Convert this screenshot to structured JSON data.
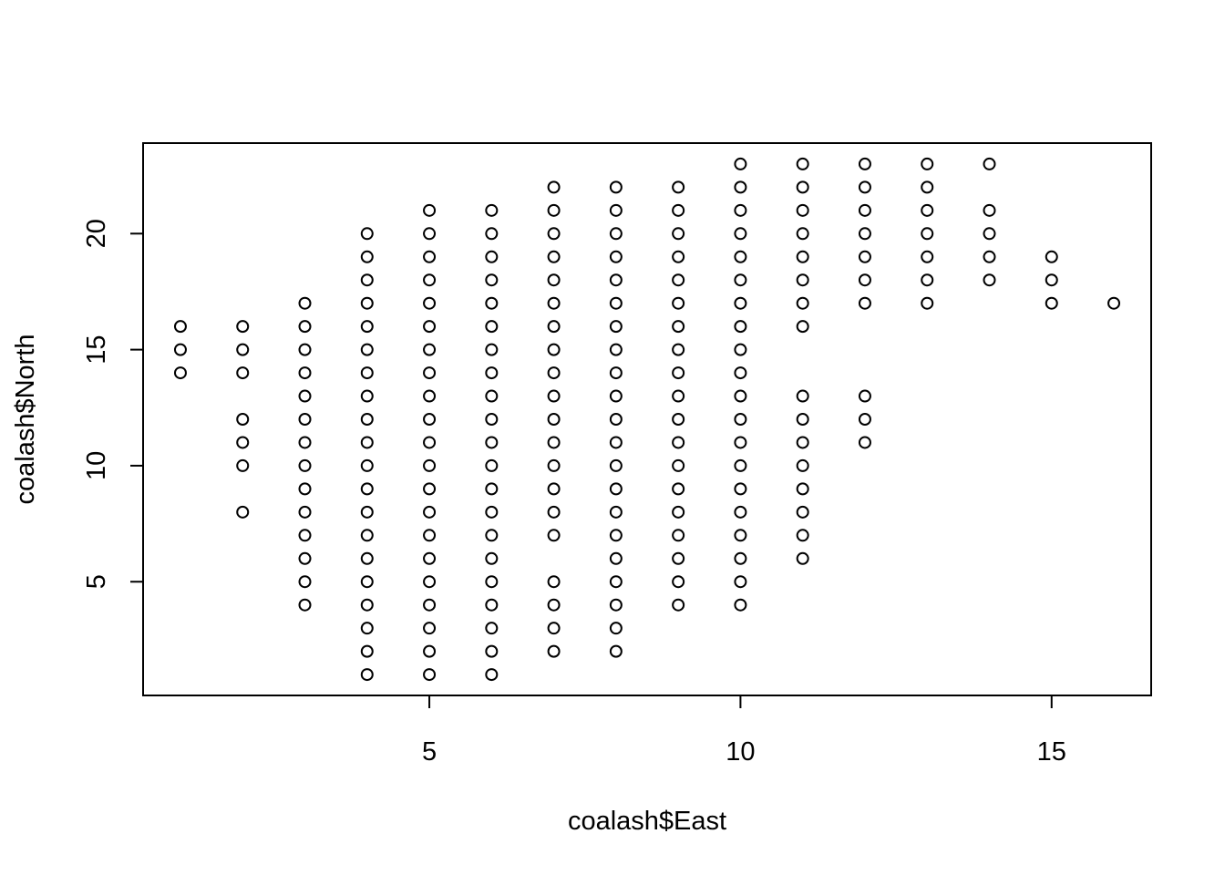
{
  "chart_data": {
    "type": "scatter",
    "title": "",
    "xlabel": "coalash$East",
    "ylabel": "coalash$North",
    "xlim": [
      0.4,
      16.6
    ],
    "ylim": [
      0.1,
      23.9
    ],
    "x_ticks": [
      5,
      10,
      15
    ],
    "x_tick_labels": [
      "5",
      "10",
      "15"
    ],
    "y_ticks": [
      5,
      10,
      15,
      20
    ],
    "y_tick_labels": [
      "5",
      "10",
      "15",
      "20"
    ],
    "grid": false,
    "legend": "none",
    "marker": "open-circle",
    "colors": {
      "marker": "#000000",
      "axis": "#000000",
      "background": "#ffffff"
    },
    "columns": [
      {
        "x": 1,
        "y": [
          14,
          15,
          16
        ]
      },
      {
        "x": 2,
        "y": [
          8,
          10,
          11,
          12,
          14,
          15,
          16
        ]
      },
      {
        "x": 3,
        "y": [
          4,
          5,
          6,
          7,
          8,
          9,
          10,
          11,
          12,
          13,
          14,
          15,
          16,
          17
        ]
      },
      {
        "x": 4,
        "y": [
          1,
          2,
          3,
          4,
          5,
          6,
          7,
          8,
          9,
          10,
          11,
          12,
          13,
          14,
          15,
          16,
          17,
          18,
          19,
          20
        ]
      },
      {
        "x": 5,
        "y": [
          1,
          2,
          3,
          4,
          5,
          6,
          7,
          8,
          9,
          10,
          11,
          12,
          13,
          14,
          15,
          16,
          17,
          18,
          19,
          20,
          21
        ]
      },
      {
        "x": 6,
        "y": [
          1,
          2,
          3,
          4,
          5,
          6,
          7,
          8,
          9,
          10,
          11,
          12,
          13,
          14,
          15,
          16,
          17,
          18,
          19,
          20,
          21
        ]
      },
      {
        "x": 7,
        "y": [
          2,
          3,
          4,
          5,
          7,
          8,
          9,
          10,
          11,
          12,
          13,
          14,
          15,
          16,
          17,
          18,
          19,
          20,
          21,
          22
        ]
      },
      {
        "x": 8,
        "y": [
          2,
          3,
          4,
          5,
          6,
          7,
          8,
          9,
          10,
          11,
          12,
          13,
          14,
          15,
          16,
          17,
          18,
          19,
          20,
          21,
          22
        ]
      },
      {
        "x": 9,
        "y": [
          4,
          5,
          6,
          7,
          8,
          9,
          10,
          11,
          12,
          13,
          14,
          15,
          16,
          17,
          18,
          19,
          20,
          21,
          22
        ]
      },
      {
        "x": 10,
        "y": [
          4,
          5,
          6,
          7,
          8,
          9,
          10,
          11,
          12,
          13,
          14,
          15,
          16,
          17,
          18,
          19,
          20,
          21,
          22,
          23
        ]
      },
      {
        "x": 11,
        "y": [
          6,
          7,
          8,
          9,
          10,
          11,
          12,
          13,
          16,
          17,
          18,
          19,
          20,
          21,
          22,
          23
        ]
      },
      {
        "x": 12,
        "y": [
          11,
          12,
          13,
          17,
          18,
          19,
          20,
          21,
          22,
          23
        ]
      },
      {
        "x": 13,
        "y": [
          17,
          18,
          19,
          20,
          21,
          22,
          23
        ]
      },
      {
        "x": 14,
        "y": [
          18,
          19,
          20,
          21,
          23
        ]
      },
      {
        "x": 15,
        "y": [
          17,
          18,
          19
        ]
      },
      {
        "x": 16,
        "y": [
          17
        ]
      }
    ]
  }
}
